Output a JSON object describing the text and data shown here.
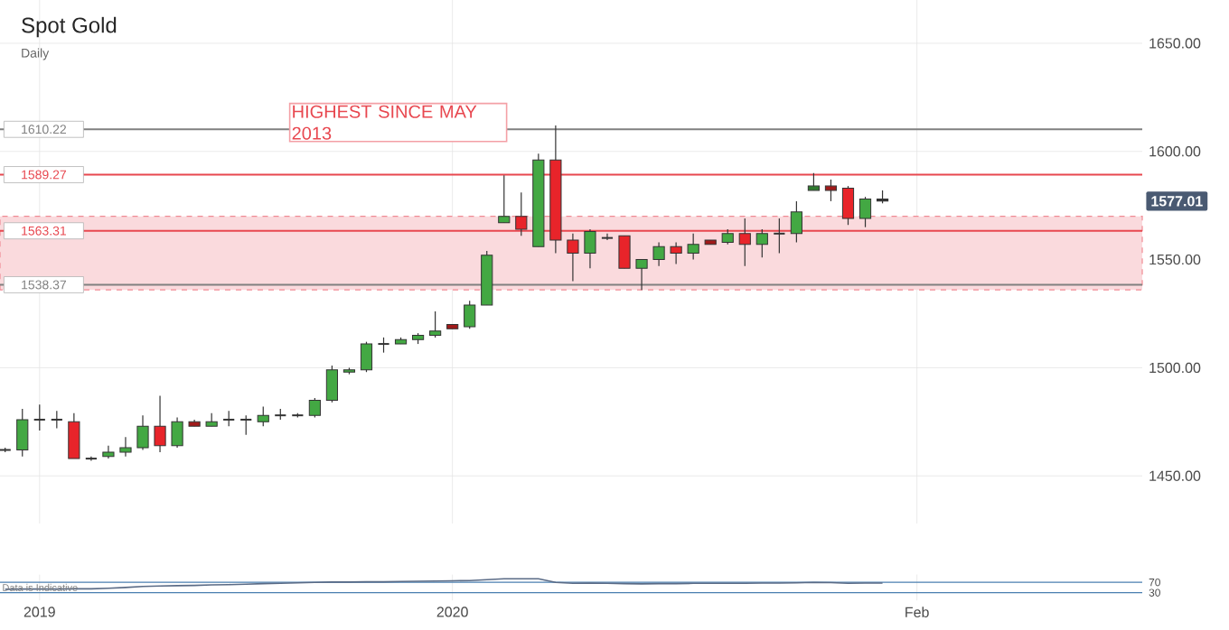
{
  "chart_data": [
    {
      "type": "candlestick",
      "title": "Spot Gold",
      "subtitle": "Daily",
      "categories": [
        null,
        null,
        null,
        null,
        null,
        null,
        null,
        null,
        null,
        null,
        null,
        null,
        null,
        null,
        null,
        null,
        null,
        null,
        null,
        null,
        null,
        null,
        null,
        null,
        null,
        null,
        null,
        null,
        null,
        null,
        null,
        null,
        null,
        null,
        null,
        null,
        null,
        null,
        null,
        null,
        null,
        null,
        null,
        null,
        null,
        null,
        null,
        null,
        null,
        null,
        null,
        null,
        null,
        null,
        null,
        null,
        null,
        null,
        null,
        null,
        null,
        null,
        null,
        null,
        null,
        null,
        null
      ],
      "ohlc": [
        [
          1462,
          1463,
          1461,
          1462
        ],
        [
          1462,
          1481,
          1459,
          1476
        ],
        [
          1476,
          1483,
          1471,
          1476
        ],
        [
          1476,
          1480,
          1472,
          1476
        ],
        [
          1475,
          1479,
          1458,
          1458
        ],
        [
          1458,
          1459,
          1457,
          1458
        ],
        [
          1459,
          1464,
          1458,
          1461
        ],
        [
          1461,
          1468,
          1459,
          1463
        ],
        [
          1463,
          1478,
          1462,
          1473
        ],
        [
          1473,
          1487,
          1461,
          1464
        ],
        [
          1464,
          1477,
          1463,
          1475
        ],
        [
          1475,
          1476,
          1473,
          1473
        ],
        [
          1473,
          1479,
          1473,
          1475
        ],
        [
          1476,
          1480,
          1473,
          1476
        ],
        [
          1476,
          1478,
          1469,
          1476
        ],
        [
          1475,
          1482,
          1473,
          1478
        ],
        [
          1478,
          1481,
          1476,
          1478
        ],
        [
          1478,
          1479,
          1477,
          1478
        ],
        [
          1478,
          1486,
          1477,
          1485
        ],
        [
          1485,
          1501,
          1484,
          1499
        ],
        [
          1498,
          1500,
          1497,
          1499
        ],
        [
          1499,
          1512,
          1498,
          1511
        ],
        [
          1511,
          1514,
          1507,
          1511
        ],
        [
          1511,
          1514,
          1511,
          1513
        ],
        [
          1513,
          1516,
          1511,
          1515
        ],
        [
          1515,
          1526,
          1514,
          1517
        ],
        [
          1520,
          1520,
          1518,
          1518
        ],
        [
          1519,
          1531,
          1518,
          1529
        ],
        [
          1529,
          1554,
          1529,
          1552
        ],
        [
          1567,
          1589,
          1567,
          1570
        ],
        [
          1570,
          1581,
          1561,
          1564
        ],
        [
          1556,
          1599,
          1556,
          1596
        ],
        [
          1596,
          1612,
          1553,
          1559
        ],
        [
          1559,
          1562,
          1540,
          1553
        ],
        [
          1553,
          1564,
          1546,
          1563
        ],
        [
          1560,
          1562,
          1559,
          1560
        ],
        [
          1561,
          1561,
          1546,
          1546
        ],
        [
          1546,
          1550,
          1536,
          1550
        ],
        [
          1550,
          1558,
          1547,
          1556
        ],
        [
          1556,
          1558,
          1548,
          1553
        ],
        [
          1553,
          1562,
          1550,
          1557
        ],
        [
          1559,
          1559,
          1557,
          1557
        ],
        [
          1558,
          1564,
          1557,
          1562
        ],
        [
          1562,
          1569,
          1547,
          1557
        ],
        [
          1557,
          1564,
          1551,
          1562
        ],
        [
          1562,
          1569,
          1553,
          1562
        ],
        [
          1562,
          1577,
          1558,
          1572
        ],
        [
          1582,
          1590,
          1582,
          1584
        ],
        [
          1584,
          1587,
          1577,
          1582
        ],
        [
          1583,
          1584,
          1566,
          1569
        ],
        [
          1569,
          1579,
          1565,
          1578
        ],
        [
          1578,
          1582,
          1576,
          1577.01
        ],
        null,
        null,
        null,
        null,
        null,
        null,
        null,
        null,
        null,
        null,
        null,
        null,
        null,
        null,
        null
      ],
      "colors": [
        "#333333",
        "#43a843",
        "#333333",
        "#333333",
        "#e8242a",
        "#333333",
        "#43a843",
        "#43a843",
        "#43a843",
        "#e8242a",
        "#43a843",
        "#a01a1a",
        "#43a843",
        "#333333",
        "#333333",
        "#43a843",
        "#333333",
        "#333333",
        "#43a843",
        "#43a843",
        "#43a843",
        "#43a843",
        "#333333",
        "#43a843",
        "#43a843",
        "#43a843",
        "#a01a1a",
        "#43a843",
        "#43a843",
        "#43a843",
        "#e8242a",
        "#43a843",
        "#e8242a",
        "#e8242a",
        "#43a843",
        "#333333",
        "#e8242a",
        "#43a843",
        "#43a843",
        "#e8242a",
        "#43a843",
        "#a01a1a",
        "#43a843",
        "#e8242a",
        "#43a843",
        "#333333",
        "#43a843",
        "#2f7a2f",
        "#a01a1a",
        "#e8242a",
        "#43a843",
        "#333333",
        null,
        null,
        null,
        null,
        null,
        null,
        null,
        null,
        null,
        null,
        null,
        null,
        null,
        null,
        null
      ],
      "ylim": [
        1428,
        1670
      ],
      "yticks": [
        {
          "value": 1450,
          "label": "1450.00"
        },
        {
          "value": 1500,
          "label": "1500.00"
        },
        {
          "value": 1550,
          "label": "1550.00"
        },
        {
          "value": 1600,
          "label": "1600.00"
        },
        {
          "value": 1650,
          "label": "1650.00"
        }
      ],
      "tick_labels": "y",
      "grid": true,
      "ref_lines": [
        {
          "axis": "y",
          "value": 1610.22,
          "label": "1610.22",
          "color": "#808080"
        },
        {
          "axis": "y",
          "value": 1589.27,
          "label": "1589.27",
          "color": "#e8474f"
        },
        {
          "axis": "y",
          "value": 1563.31,
          "label": "1563.31",
          "color": "#e8474f"
        },
        {
          "axis": "y",
          "value": 1538.37,
          "label": "1538.37",
          "color": "#808080"
        }
      ],
      "bands": [
        {
          "axis": "y",
          "from": 1536,
          "to": 1570,
          "color": "#fadadd"
        }
      ],
      "annotations": [
        "HIGHEST SINCE MAY 2013",
        {
          "text": "1577.01",
          "y": 1577.01
        }
      ]
    },
    {
      "type": "line",
      "categories": [
        null,
        null,
        "2019",
        null,
        null,
        null,
        null,
        null,
        null,
        null,
        null,
        null,
        null,
        null,
        null,
        null,
        null,
        null,
        null,
        null,
        null,
        null,
        null,
        null,
        null,
        null,
        "2020",
        null,
        null,
        null,
        null,
        null,
        null,
        null,
        null,
        null,
        null,
        null,
        null,
        null,
        null,
        null,
        null,
        null,
        null,
        null,
        null,
        null,
        null,
        null,
        null,
        null,
        null,
        "Feb",
        null,
        null,
        null,
        null,
        null,
        null,
        null,
        null,
        null,
        null,
        null,
        null,
        null
      ],
      "series": [
        {
          "color": "#5a6b86",
          "values": [
            43,
            44,
            44,
            44,
            45,
            45,
            47,
            50,
            54,
            56,
            57,
            58,
            60,
            61,
            63,
            65,
            66,
            68,
            70,
            71,
            71,
            72,
            72,
            73,
            74,
            75,
            76,
            77,
            80,
            84,
            84,
            84,
            70,
            66,
            67,
            66,
            65,
            64,
            65,
            65,
            66,
            66,
            66,
            66,
            67,
            67,
            68,
            70,
            69,
            66,
            67,
            67,
            null,
            null,
            null,
            null,
            null,
            null,
            null,
            null,
            null,
            null,
            null,
            null,
            null,
            null,
            null
          ]
        }
      ],
      "ylim": [
        0,
        100
      ],
      "yticks": [
        30,
        70
      ],
      "grid": "x",
      "ref_lines": [
        {
          "axis": "y",
          "value": 70,
          "color": "#4a7fb0"
        },
        {
          "axis": "y",
          "value": 30,
          "color": "#4a7fb0"
        }
      ],
      "annotations": [
        "Data is Indicative"
      ]
    }
  ]
}
